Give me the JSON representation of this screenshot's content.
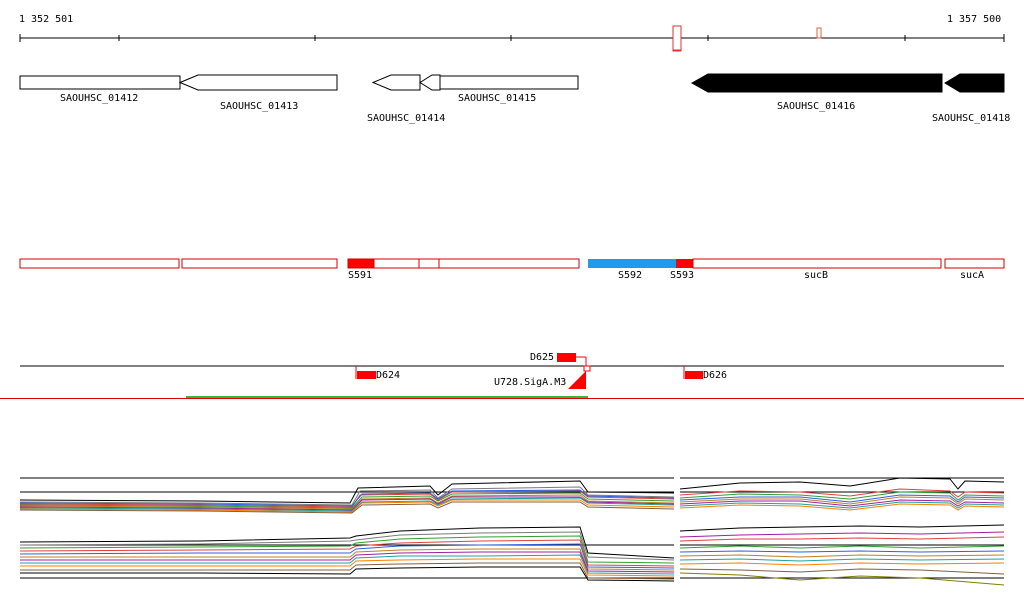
{
  "ruler": {
    "start_label": "1 352 501",
    "end_label": "1 357 500"
  },
  "genes": [
    {
      "name": "SAOUHSC_01412",
      "strand": "-",
      "style": "open"
    },
    {
      "name": "SAOUHSC_01413",
      "strand": "-",
      "style": "open"
    },
    {
      "name": "SAOUHSC_01414",
      "strand": "-",
      "style": "open"
    },
    {
      "name": "SAOUHSC_01415",
      "strand": "-",
      "style": "open"
    },
    {
      "name": "SAOUHSC_01416",
      "strand": "-",
      "style": "filled"
    },
    {
      "name": "SAOUHSC_01418",
      "strand": "-",
      "style": "filled"
    }
  ],
  "segments": [
    {
      "name": "S591",
      "color": "#ff0000"
    },
    {
      "name": "S592",
      "color": "#1e9af0"
    },
    {
      "name": "S593",
      "color": "#ff0000"
    },
    {
      "name": "sucB",
      "color": "#ff0000"
    },
    {
      "name": "sucA",
      "color": "#ff0000"
    }
  ],
  "features": [
    {
      "name": "D625"
    },
    {
      "name": "D624"
    },
    {
      "name": "U728.SigA.M3"
    },
    {
      "name": "D626"
    }
  ],
  "colors": {
    "ruler_marker": "#e06040",
    "segment_outline": "#d00000",
    "segment_fill": "#ff0000",
    "highlight": "#1e9af0",
    "divider": "#e00000",
    "green_track": "#3cb43c"
  }
}
